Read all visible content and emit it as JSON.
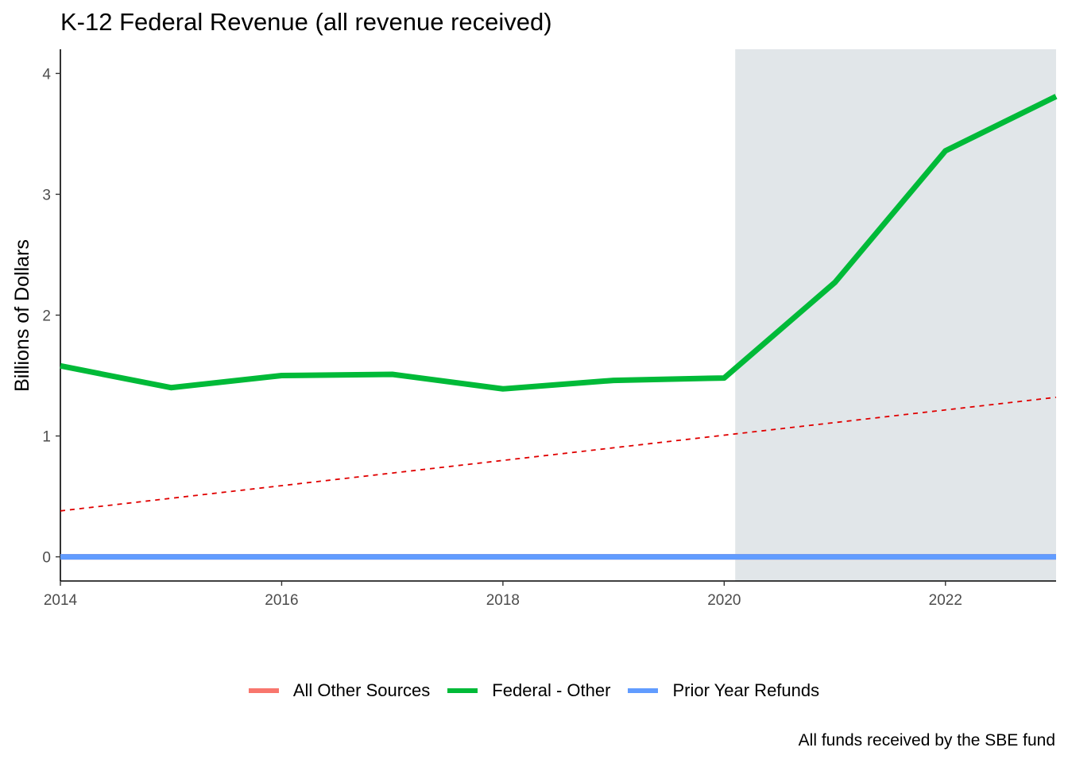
{
  "chart_data": {
    "type": "line",
    "title": "K-12 Federal Revenue (all revenue received)",
    "xlabel": "",
    "ylabel": "Billions of Dollars",
    "caption": "All funds received by the SBE fund",
    "xlim": [
      2014,
      2023
    ],
    "ylim": [
      -0.2,
      4.2
    ],
    "x_ticks": [
      2014,
      2016,
      2018,
      2020,
      2022
    ],
    "y_ticks": [
      0,
      1,
      2,
      3,
      4
    ],
    "shaded_region": {
      "x_start": 2020.1,
      "x_end": 2023,
      "color": "#e1e6e9"
    },
    "grid": false,
    "legend_position": "bottom",
    "x": [
      2014,
      2015,
      2016,
      2017,
      2018,
      2019,
      2020,
      2021,
      2022,
      2023
    ],
    "series": [
      {
        "name": "All Other Sources",
        "color": "#f8766d",
        "values": [
          0,
          0,
          0,
          0,
          0,
          0,
          0,
          0,
          0,
          0
        ]
      },
      {
        "name": "Federal - Other",
        "color": "#00ba38",
        "values": [
          1.58,
          1.4,
          1.5,
          1.51,
          1.39,
          1.46,
          1.48,
          2.27,
          3.36,
          3.81
        ]
      },
      {
        "name": "Prior Year Refunds",
        "color": "#619cff",
        "values": [
          0,
          0,
          0,
          0,
          0,
          0,
          0,
          0,
          0,
          0
        ]
      }
    ],
    "trend_line": {
      "color": "#e00000",
      "style": "dashed",
      "x": [
        2014,
        2023
      ],
      "values": [
        0.38,
        1.32
      ]
    }
  }
}
